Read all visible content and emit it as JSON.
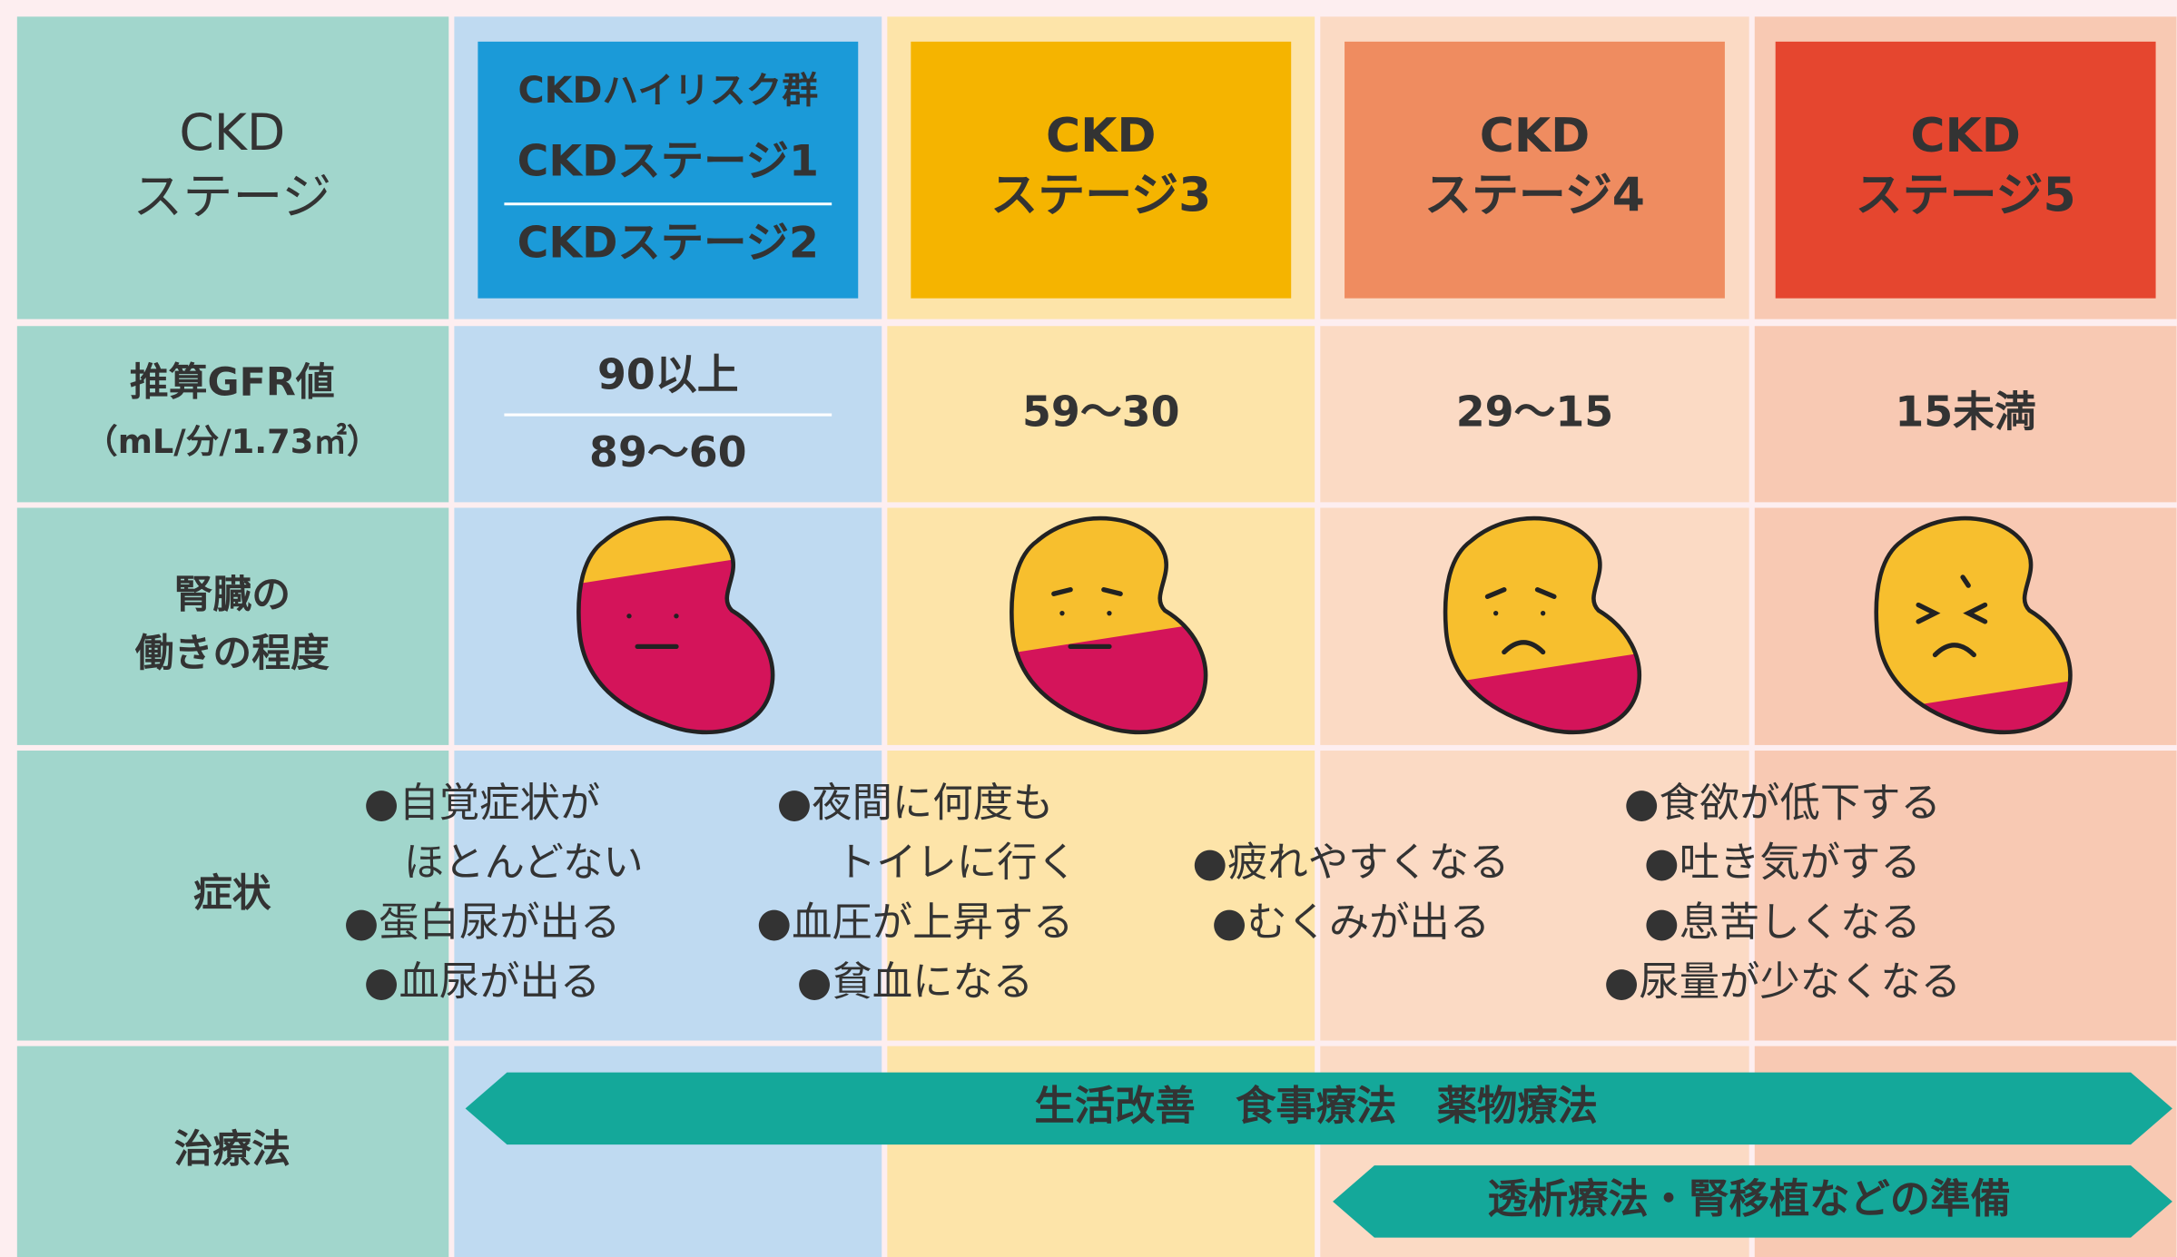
{
  "table": {
    "row_headers": [
      [
        "CKD",
        "ステージ"
      ],
      [
        "推算GFR値",
        "（mL/分/1.73㎡）"
      ],
      [
        "腎臓の",
        "働きの程度"
      ],
      [
        "症状"
      ],
      [
        "治療法"
      ]
    ],
    "columns": [
      {
        "stage": [
          "CKDハイリスク群",
          "CKDステージ1",
          "CKDステージ2"
        ],
        "gfr": [
          "90以上",
          "89～60"
        ],
        "symptoms": [
          [
            "●自覚症状が",
            "ほとんどない"
          ],
          [
            "●蛋白尿が出る"
          ],
          [
            "●血尿が出る"
          ]
        ]
      },
      {
        "stage": [
          "CKD",
          "ステージ3"
        ],
        "gfr": [
          "59～30"
        ],
        "symptoms": [
          [
            "●夜間に何度も",
            "トイレに行く"
          ],
          [
            "●血圧が上昇する"
          ],
          [
            "●貧血になる"
          ]
        ]
      },
      {
        "stage": [
          "CKD",
          "ステージ4"
        ],
        "gfr": [
          "29～15"
        ],
        "symptoms": [
          [
            "●疲れやすくなる"
          ],
          [
            "●むくみが出る"
          ]
        ]
      },
      {
        "stage": [
          "CKD",
          "ステージ5"
        ],
        "gfr": [
          "15未満"
        ],
        "symptoms": [
          [
            "●食欲が低下する"
          ],
          [
            "●吐き気がする"
          ],
          [
            "●息苦しくなる"
          ],
          [
            "●尿量が少なくなる"
          ]
        ]
      }
    ],
    "treatments": [
      "生活改善　食事療法　薬物療法",
      "透析療法・腎移植などの準備"
    ]
  }
}
